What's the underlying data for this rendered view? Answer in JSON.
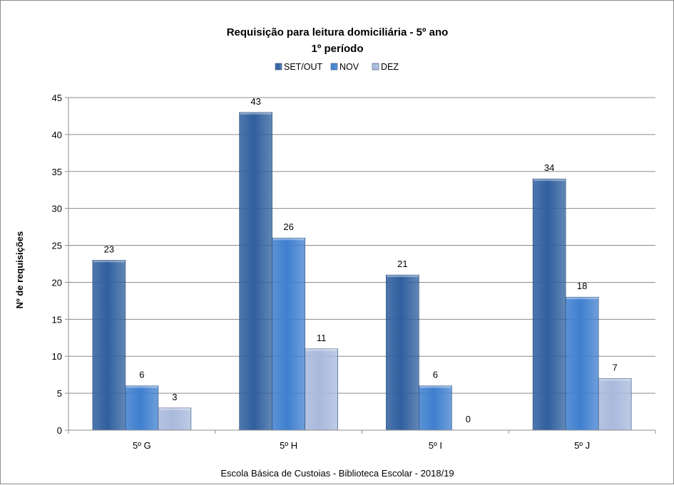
{
  "chart_data": {
    "type": "bar",
    "title": "Requisição para leitura domiciliária - 5º ano",
    "subtitle": "1º período",
    "ylabel": "Nº de requisições",
    "xlabel": "",
    "footer": "Escola Básica de Custoias - Biblioteca Escolar  - 2018/19",
    "categories": [
      "5º G",
      "5º H",
      "5º I",
      "5º J"
    ],
    "series": [
      {
        "name": "SET/OUT",
        "values": [
          23,
          43,
          21,
          34
        ],
        "color": "#2f5f9e"
      },
      {
        "name": "NOV",
        "values": [
          6,
          26,
          6,
          18
        ],
        "color": "#3f7fcf"
      },
      {
        "name": "DEZ",
        "values": [
          3,
          11,
          0,
          7
        ],
        "color": "#a9b9dc"
      }
    ],
    "ylim": [
      0,
      45
    ],
    "yticks": [
      0,
      5,
      10,
      15,
      20,
      25,
      30,
      35,
      40,
      45
    ],
    "grid": true,
    "legend_position": "top",
    "data_labels": true
  }
}
